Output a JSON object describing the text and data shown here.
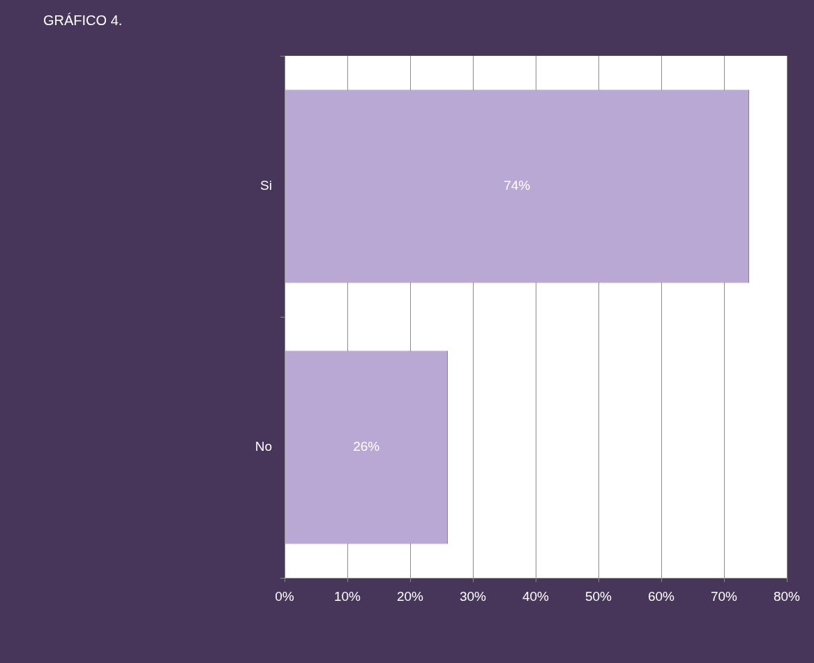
{
  "chart_data": {
    "type": "bar",
    "orientation": "horizontal",
    "title": "GRÁFICO 4.",
    "categories": [
      "Si",
      "No"
    ],
    "values": [
      74,
      26
    ],
    "value_labels": [
      "74%",
      "26%"
    ],
    "color": "#b9a8d3",
    "xlim": [
      0,
      80
    ],
    "xticks": [
      {
        "value": 0,
        "label": "0%"
      },
      {
        "value": 10,
        "label": "10%"
      },
      {
        "value": 20,
        "label": "20%"
      },
      {
        "value": 30,
        "label": "30%"
      },
      {
        "value": 40,
        "label": "40%"
      },
      {
        "value": 50,
        "label": "50%"
      },
      {
        "value": 60,
        "label": "60%"
      },
      {
        "value": 70,
        "label": "70%"
      },
      {
        "value": 80,
        "label": "80%"
      }
    ],
    "grid": "x",
    "legend": false
  }
}
